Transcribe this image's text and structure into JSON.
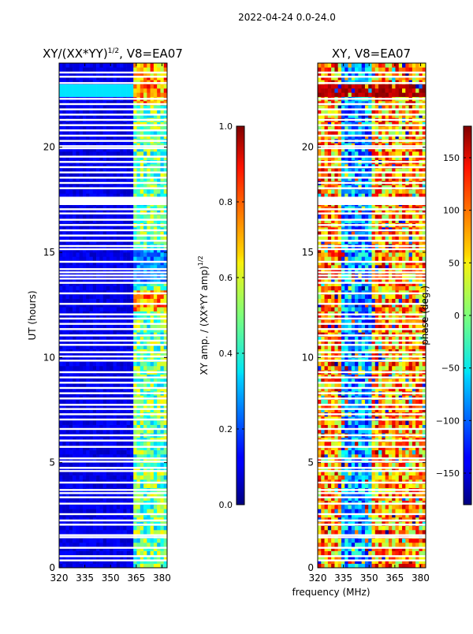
{
  "suptitle": "2022-04-24 0.0-24.0",
  "left_title": "XY/(XX*YY)",
  "left_title_exp": "1/2",
  "left_title_suffix": ", V8=EA07",
  "right_title": "XY, V8=EA07",
  "colors": {
    "background": "#ffffff",
    "missing": "#ffffff"
  },
  "chart_data": [
    {
      "type": "heatmap",
      "title": "XY/(XX*YY)^1/2, V8=EA07",
      "xlabel": "",
      "ylabel": "UT (hours)",
      "xlim": [
        320,
        383
      ],
      "ylim": [
        0,
        24
      ],
      "xticks": [
        "320",
        "335",
        "350",
        "365",
        "380"
      ],
      "xtick_values": [
        320,
        335,
        350,
        365,
        380
      ],
      "yticks": [
        "0",
        "5",
        "10",
        "15",
        "20"
      ],
      "ytick_values": [
        0,
        5,
        10,
        15,
        20
      ],
      "colormap": "jet",
      "value_range": [
        0.0,
        1.0
      ],
      "colorbar": {
        "label": "XY amp. / (XX*YY amp)",
        "label_exp": "1/2",
        "range": [
          0.0,
          1.0
        ],
        "ticks": [
          "0.0",
          "0.2",
          "0.4",
          "0.6",
          "0.8",
          "1.0"
        ],
        "tick_values": [
          0.0,
          0.2,
          0.4,
          0.6,
          0.8,
          1.0
        ]
      },
      "description_of_values": "low amplitude (~0.05) below 363 MHz; elevated (0.3-0.8) at 363-380 MHz; stronger near 22-23 h and 12-13 h"
    },
    {
      "type": "heatmap",
      "title": "XY, V8=EA07",
      "xlabel": "frequency (MHz)",
      "ylabel": "",
      "xlim": [
        320,
        383
      ],
      "ylim": [
        0,
        24
      ],
      "xticks": [
        "320",
        "335",
        "350",
        "365",
        "380"
      ],
      "xtick_values": [
        320,
        335,
        350,
        365,
        380
      ],
      "yticks": [
        "0",
        "5",
        "10",
        "15",
        "20"
      ],
      "ytick_values": [
        0,
        5,
        10,
        15,
        20
      ],
      "colormap": "jet",
      "value_range": [
        -180,
        180
      ],
      "colorbar": {
        "label": "phase (deg.)",
        "range": [
          -180,
          180
        ],
        "ticks": [
          "−150",
          "−100",
          "−50",
          "0",
          "50",
          "100",
          "150"
        ],
        "tick_values": [
          -150,
          -100,
          -50,
          0,
          50,
          100,
          150
        ]
      },
      "description_of_values": "phase varies broadly across -180..180 deg; blue band near 335-350 MHz, yellow/red elsewhere"
    }
  ],
  "gap_rows_hours": [
    0.35,
    0.55,
    0.95,
    1.45,
    1.55,
    2.05,
    2.25,
    2.55,
    3.05,
    3.35,
    3.55,
    3.7,
    4.05,
    4.6,
    4.75,
    5.05,
    5.2,
    5.75,
    6.05,
    6.3,
    6.6,
    7.05,
    7.3,
    7.55,
    7.75,
    8.05,
    8.3,
    8.55,
    8.8,
    9.05,
    9.3,
    9.85,
    10.05,
    10.25,
    10.6,
    10.8,
    11.05,
    11.35,
    11.6,
    11.85,
    12.05,
    12.55,
    13.05,
    13.55,
    13.75,
    13.9,
    14.05,
    14.2,
    14.55,
    15.15,
    15.3,
    15.55,
    15.8,
    16.05,
    16.3,
    16.55,
    16.85,
    17.05,
    17.4,
    17.5,
    17.6,
    18.05,
    18.3,
    18.55,
    18.8,
    19.05,
    19.3,
    19.55,
    19.95,
    20.05,
    20.3,
    20.55,
    20.8,
    21.05,
    21.3,
    21.55,
    21.8,
    22.05,
    22.3,
    23.05,
    23.35,
    23.55
  ]
}
